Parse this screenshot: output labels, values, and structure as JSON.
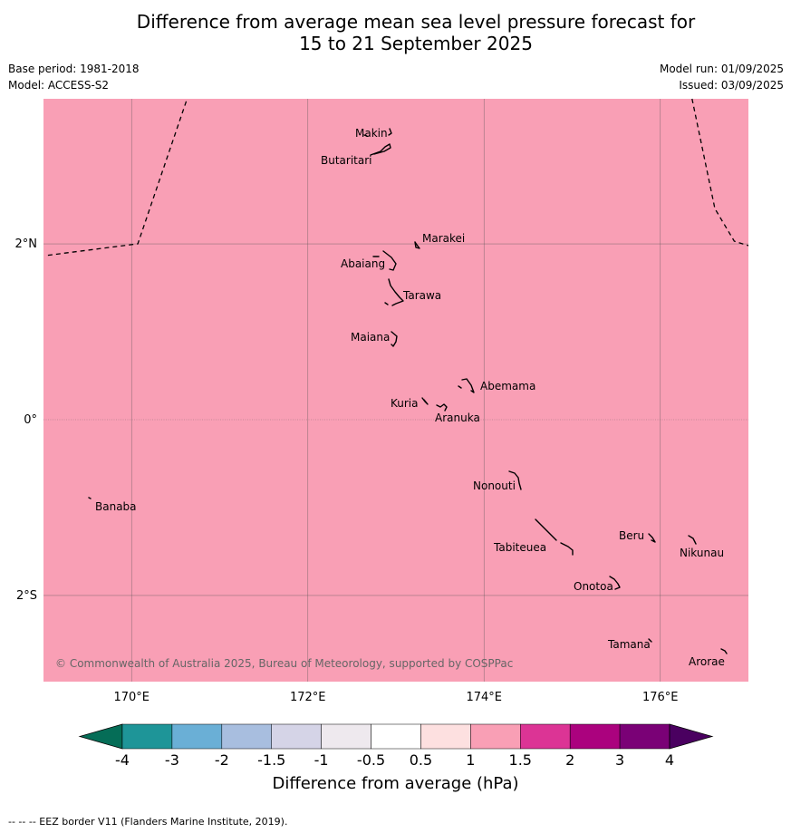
{
  "title_line1": "Difference from average mean sea level pressure forecast for",
  "title_line2": "15 to 21 September 2025",
  "base_period": "Base period: 1981-2018",
  "model": "Model: ACCESS-S2",
  "model_run": "Model run: 01/09/2025",
  "issued": "Issued: 03/09/2025",
  "copyright": "© Commonwealth of Australia 2025, Bureau of Meteorology, supported by COSPPac",
  "map": {
    "fill_color": "#f99fb5",
    "lon_range": [
      169,
      177
    ],
    "lat_range": [
      -2.98,
      3.65
    ],
    "lon_ticks": [
      {
        "v": 170,
        "label": "170°E"
      },
      {
        "v": 172,
        "label": "172°E"
      },
      {
        "v": 174,
        "label": "174°E"
      },
      {
        "v": 176,
        "label": "176°E"
      }
    ],
    "lat_ticks": [
      {
        "v": 2,
        "label": "2°N"
      },
      {
        "v": 0,
        "label": "0°"
      },
      {
        "v": -2,
        "label": "2°S"
      }
    ],
    "eez_lines": [
      [
        [
          169.05,
          1.87
        ],
        [
          170.07,
          2.0
        ],
        [
          170.63,
          3.65
        ]
      ],
      [
        [
          176.36,
          3.65
        ],
        [
          176.62,
          2.4
        ],
        [
          176.84,
          2.03
        ],
        [
          177.0,
          1.98
        ]
      ]
    ],
    "islands": [
      {
        "name": "Makin",
        "lon": 172.99,
        "lat": 3.33
      },
      {
        "name": "Butaritari",
        "lon": 172.85,
        "lat": 3.07
      },
      {
        "name": "Marakei",
        "lon": 173.33,
        "lat": 2.0
      },
      {
        "name": "Abaiang",
        "lon": 172.95,
        "lat": 1.8
      },
      {
        "name": "Tarawa",
        "lon": 173.05,
        "lat": 1.4
      },
      {
        "name": "Maiana",
        "lon": 173.02,
        "lat": 0.92
      },
      {
        "name": "Abemama",
        "lon": 173.87,
        "lat": 0.38
      },
      {
        "name": "Kuria",
        "lon": 173.41,
        "lat": 0.23
      },
      {
        "name": "Aranuka",
        "lon": 173.62,
        "lat": 0.17
      },
      {
        "name": "Nonouti",
        "lon": 174.42,
        "lat": -0.67
      },
      {
        "name": "Banaba",
        "lon": 169.54,
        "lat": -0.86
      },
      {
        "name": "Tabiteuea",
        "lon": 174.85,
        "lat": -1.37
      },
      {
        "name": "Beru",
        "lon": 175.98,
        "lat": -1.33
      },
      {
        "name": "Nikunau",
        "lon": 176.44,
        "lat": -1.35
      },
      {
        "name": "Onotoa",
        "lon": 175.58,
        "lat": -1.85
      },
      {
        "name": "Tamana",
        "lon": 175.98,
        "lat": -2.49
      },
      {
        "name": "Arorae",
        "lon": 176.82,
        "lat": -2.63
      }
    ]
  },
  "colorbar": {
    "label": "Difference from average (hPa)",
    "ticks": [
      "-4",
      "-3",
      "-2",
      "-1.5",
      "-1",
      "-0.5",
      "0.5",
      "1",
      "1.5",
      "2",
      "3",
      "4"
    ],
    "colors": [
      "#1e9598",
      "#6aafd6",
      "#a8bedf",
      "#d5d4e7",
      "#eee9ee",
      "#ffffff",
      "#fde0e0",
      "#f99fb5",
      "#dc3495",
      "#ab027e",
      "#7a0176"
    ],
    "under_color": "#056d57",
    "over_color": "#4a0060"
  },
  "footnote": "--  --  -- EEZ border V11 (Flanders Marine Institute, 2019)."
}
